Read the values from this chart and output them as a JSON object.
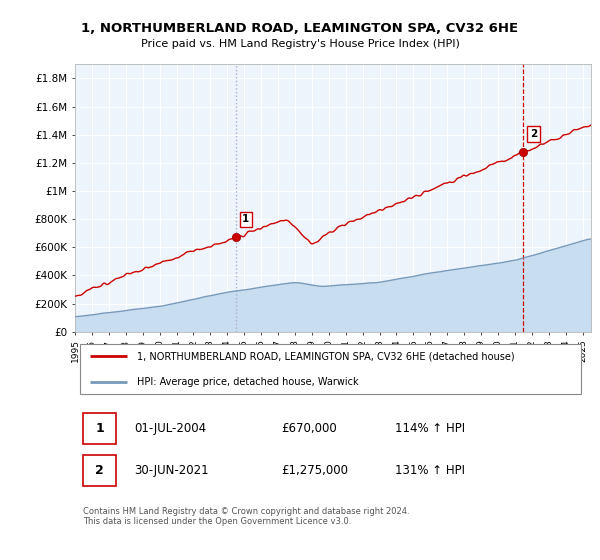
{
  "title_line1": "1, NORTHUMBERLAND ROAD, LEAMINGTON SPA, CV32 6HE",
  "title_line2": "Price paid vs. HM Land Registry's House Price Index (HPI)",
  "ylabel_ticks": [
    "£0",
    "£200K",
    "£400K",
    "£600K",
    "£800K",
    "£1M",
    "£1.2M",
    "£1.4M",
    "£1.6M",
    "£1.8M"
  ],
  "ytick_values": [
    0,
    200000,
    400000,
    600000,
    800000,
    1000000,
    1200000,
    1400000,
    1600000,
    1800000
  ],
  "ylim": [
    0,
    1900000
  ],
  "xlim_start": 1995.0,
  "xlim_end": 2025.5,
  "xtick_years": [
    1995,
    1996,
    1997,
    1998,
    1999,
    2000,
    2001,
    2002,
    2003,
    2004,
    2005,
    2006,
    2007,
    2008,
    2009,
    2010,
    2011,
    2012,
    2013,
    2014,
    2015,
    2016,
    2017,
    2018,
    2019,
    2020,
    2021,
    2022,
    2023,
    2024,
    2025
  ],
  "sale1_x": 2004.5,
  "sale1_y": 670000,
  "sale1_label": "1",
  "sale1_date": "01-JUL-2004",
  "sale1_price": "£670,000",
  "sale1_hpi": "114% ↑ HPI",
  "sale2_x": 2021.5,
  "sale2_y": 1275000,
  "sale2_label": "2",
  "sale2_date": "30-JUN-2021",
  "sale2_price": "£1,275,000",
  "sale2_hpi": "131% ↑ HPI",
  "red_line_color": "#cc0000",
  "blue_line_color": "#7799bb",
  "blue_fill_color": "#c8ddf0",
  "sale_marker_color": "#cc0000",
  "dashed1_color": "#aaaacc",
  "dashed2_color": "#cc0000",
  "legend_label_red": "1, NORTHUMBERLAND ROAD, LEAMINGTON SPA, CV32 6HE (detached house)",
  "legend_label_blue": "HPI: Average price, detached house, Warwick",
  "footer": "Contains HM Land Registry data © Crown copyright and database right 2024.\nThis data is licensed under the Open Government Licence v3.0.",
  "background_color": "#ffffff",
  "plot_bg_color": "#eef4fb",
  "grid_color": "#ffffff"
}
